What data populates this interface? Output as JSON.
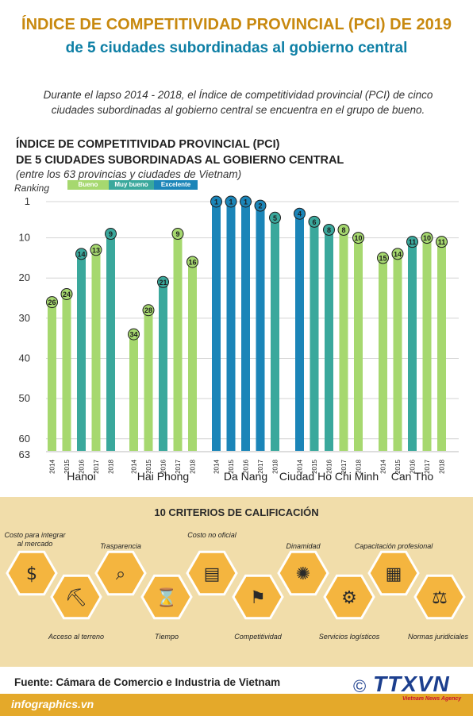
{
  "title": "ÍNDICE DE COMPETITIVIDAD PROVINCIAL (PCI) DE 2019",
  "subtitle": "de 5 ciudades subordinadas al gobierno central",
  "intro": "Durante el lapso 2014 - 2018,  el Índice de competitividad provincial (PCI) de cinco ciudades subordinadas al gobierno central se encuentra en el grupo de bueno.",
  "chart_title_1": "ÍNDICE DE COMPETITIVIDAD PROVINCIAL (PCI)",
  "chart_title_2": "DE 5 CIUDADES SUBORDINADAS AL GOBIERNO CENTRAL",
  "chart_title_3": "(entre los 63 provincias y ciudades de Vietnam)",
  "legend": [
    {
      "label": "Bueno",
      "color": "#a6d86f"
    },
    {
      "label": "Muy bueno",
      "color": "#3aa89c"
    },
    {
      "label": "Excelente",
      "color": "#1b85b8"
    }
  ],
  "chart_data": {
    "type": "bar",
    "ylabel": "Ranking",
    "y_reversed": true,
    "ylim": [
      0,
      63
    ],
    "yticks": [
      1,
      10,
      20,
      30,
      40,
      50,
      60,
      63
    ],
    "grid": true,
    "years": [
      "2014",
      "2015",
      "2016",
      "2017",
      "2018"
    ],
    "groups": [
      {
        "name": "Hanoi",
        "values": [
          26,
          24,
          14,
          13,
          9
        ],
        "colors": [
          "#a6d86f",
          "#a6d86f",
          "#3aa89c",
          "#a6d86f",
          "#3aa89c"
        ]
      },
      {
        "name": "Hai Phong",
        "values": [
          34,
          28,
          21,
          9,
          16
        ],
        "colors": [
          "#a6d86f",
          "#a6d86f",
          "#3aa89c",
          "#a6d86f",
          "#a6d86f"
        ]
      },
      {
        "name": "Da Nang",
        "values": [
          1,
          1,
          1,
          2,
          5
        ],
        "colors": [
          "#1b85b8",
          "#1b85b8",
          "#1b85b8",
          "#1b85b8",
          "#3aa89c"
        ]
      },
      {
        "name": "Ciudad Ho Chi Minh",
        "values": [
          4,
          6,
          8,
          8,
          10
        ],
        "colors": [
          "#1b85b8",
          "#3aa89c",
          "#3aa89c",
          "#a6d86f",
          "#a6d86f"
        ]
      },
      {
        "name": "Can Tho",
        "values": [
          15,
          14,
          11,
          10,
          11
        ],
        "colors": [
          "#a6d86f",
          "#a6d86f",
          "#3aa89c",
          "#a6d86f",
          "#a6d86f"
        ]
      }
    ]
  },
  "criteria_title": "10 CRITERIOS DE CALIFICACIÓN",
  "criteria": [
    {
      "label": "Costo para integrar al mercado",
      "icon": "market-cost-icon"
    },
    {
      "label": "Acceso  al terreno",
      "icon": "land-access-icon"
    },
    {
      "label": "Trasparencia",
      "icon": "transparency-icon"
    },
    {
      "label": "Tiempo",
      "icon": "hourglass-icon"
    },
    {
      "label": "Costo no oficial",
      "icon": "money-stack-icon"
    },
    {
      "label": "Competitividad",
      "icon": "competition-icon"
    },
    {
      "label": "Dinamidad",
      "icon": "brain-icon"
    },
    {
      "label": "Servicios logísticos",
      "icon": "gear-hands-icon"
    },
    {
      "label": "Capacitación profesional",
      "icon": "training-icon"
    },
    {
      "label": "Normas juridiciales",
      "icon": "scales-icon"
    }
  ],
  "source": "Fuente: Cámara de Comercio e Industria de Vietnam",
  "footer": "infographics.vn",
  "copyright_symbol": "©",
  "logo": "TTXVN",
  "logo_sub": "Vietnam News Agency"
}
